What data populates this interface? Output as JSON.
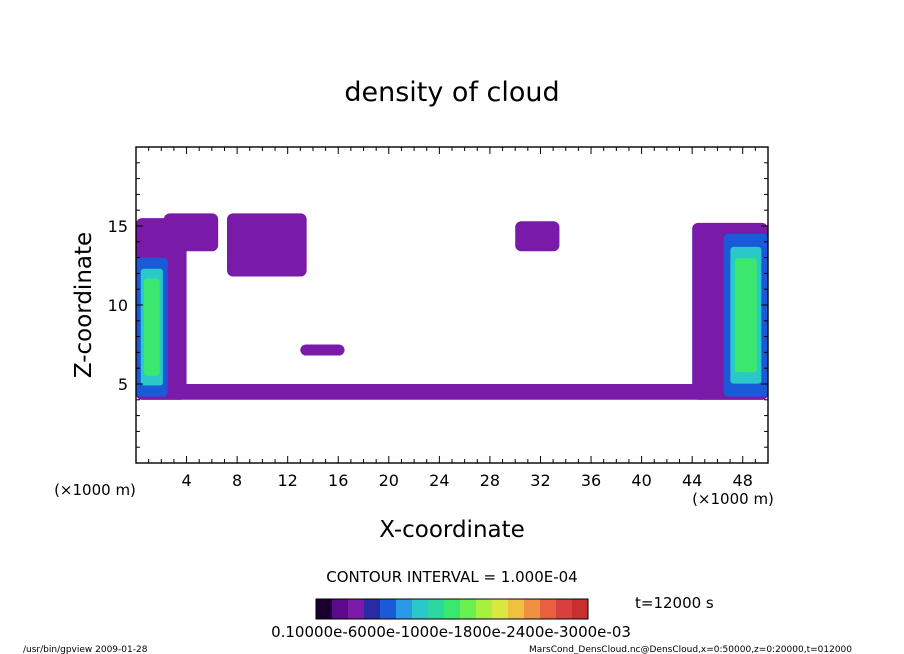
{
  "chart_data": {
    "type": "heatmap",
    "title": "density of cloud",
    "xlabel": "X-coordinate",
    "ylabel": "Z-coordinate",
    "x_unit": "(×1000 m)",
    "y_unit": "(×1000 m)",
    "xlim": [
      0,
      50
    ],
    "ylim": [
      0,
      20
    ],
    "x_ticks": [
      4,
      8,
      12,
      16,
      20,
      24,
      28,
      32,
      36,
      40,
      44,
      48
    ],
    "y_ticks": [
      5,
      10,
      15
    ],
    "contour_interval_label": "CONTOUR INTERVAL = 1.000E-04",
    "time_label": "t=12000 s",
    "colorbar": {
      "colors": [
        "#1a0030",
        "#5a0a8a",
        "#7a1aa8",
        "#2a2aa8",
        "#1a5ad8",
        "#2a9ae8",
        "#2ac8c8",
        "#2ad8a0",
        "#3ae870",
        "#6af050",
        "#a8f040",
        "#d8e840",
        "#f0c040",
        "#f09040",
        "#e86040",
        "#d84040",
        "#c83030"
      ],
      "tick_label_text": "0.10000e-6000e-1000e-1800e-2400e-3000e-03",
      "range": [
        0.0001,
        0.0003
      ]
    },
    "regions": [
      {
        "kind": "purple",
        "x": [
          0,
          50
        ],
        "z": [
          4.0,
          5.0
        ]
      },
      {
        "kind": "purple",
        "x": [
          2.2,
          6.5
        ],
        "z": [
          13.4,
          15.8
        ]
      },
      {
        "kind": "purple",
        "x": [
          7.2,
          13.5
        ],
        "z": [
          11.8,
          15.8
        ]
      },
      {
        "kind": "purple",
        "x": [
          30.0,
          33.5
        ],
        "z": [
          13.4,
          15.3
        ]
      },
      {
        "kind": "purple",
        "x": [
          13.0,
          16.5
        ],
        "z": [
          6.8,
          7.5
        ]
      },
      {
        "kind": "purple",
        "x": [
          0,
          4.0
        ],
        "z": [
          4.0,
          15.5
        ]
      },
      {
        "kind": "purple",
        "x": [
          44.0,
          50
        ],
        "z": [
          4.0,
          15.2
        ]
      },
      {
        "kind": "high",
        "x": [
          0,
          2.5
        ],
        "z": [
          4.2,
          13.0
        ]
      },
      {
        "kind": "high",
        "x": [
          46.5,
          50
        ],
        "z": [
          4.2,
          14.5
        ]
      }
    ]
  },
  "footer": {
    "left": "/usr/bin/gpview  2009-01-28",
    "right": "MarsCond_DensCloud.nc@DensCloud,x=0:50000,z=0:20000,t=012000"
  }
}
